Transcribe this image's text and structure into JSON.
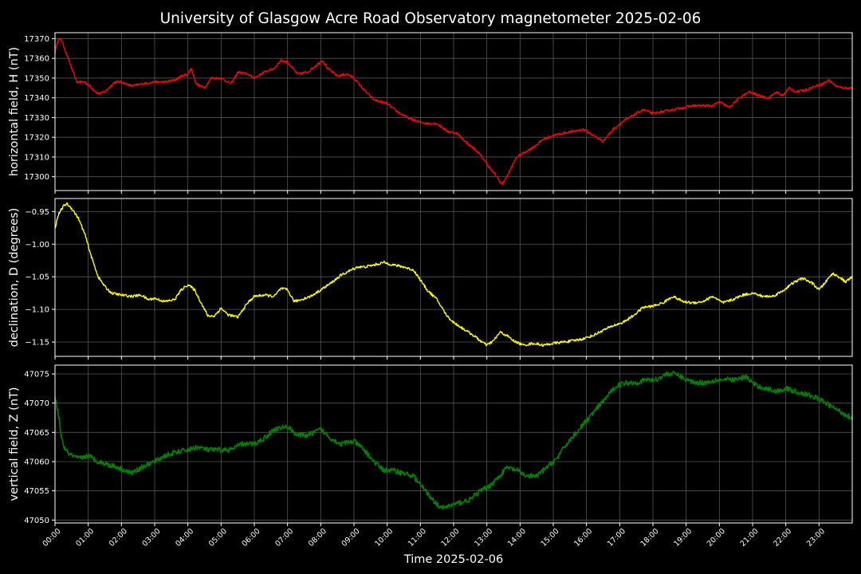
{
  "figure": {
    "title": "University of Glasgow Acre Road Observatory magnetometer 2025-02-06",
    "xlabel": "Time 2025-02-06",
    "x_tick_labels": [
      "00:00",
      "01:00",
      "02:00",
      "03:00",
      "04:00",
      "05:00",
      "06:00",
      "07:00",
      "08:00",
      "09:00",
      "10:00",
      "11:00",
      "12:00",
      "13:00",
      "14:00",
      "15:00",
      "16:00",
      "17:00",
      "18:00",
      "19:00",
      "20:00",
      "21:00",
      "22:00",
      "23:00"
    ]
  },
  "chart_data": [
    {
      "type": "line",
      "ylabel": "horizontal field, H (nT)",
      "color": "#ff0000",
      "ylim": [
        17293,
        17373
      ],
      "yticks": [
        17300,
        17310,
        17320,
        17330,
        17340,
        17350,
        17360,
        17370
      ],
      "xlim": [
        0,
        24
      ],
      "grid": true,
      "x": [
        0.0,
        0.08,
        0.18,
        0.35,
        0.5,
        0.65,
        0.9,
        1.1,
        1.3,
        1.5,
        1.8,
        2.0,
        2.3,
        2.6,
        3.0,
        3.3,
        3.6,
        3.8,
        4.0,
        4.1,
        4.25,
        4.5,
        4.7,
        5.0,
        5.3,
        5.5,
        5.8,
        6.0,
        6.3,
        6.6,
        6.8,
        7.0,
        7.3,
        7.6,
        7.9,
        8.05,
        8.2,
        8.5,
        8.8,
        9.0,
        9.3,
        9.6,
        9.8,
        10.0,
        10.3,
        10.6,
        10.9,
        11.2,
        11.5,
        11.8,
        12.1,
        12.4,
        12.7,
        12.9,
        13.1,
        13.3,
        13.45,
        13.6,
        13.75,
        13.9,
        14.1,
        14.4,
        14.7,
        15.0,
        15.3,
        15.6,
        15.9,
        16.1,
        16.3,
        16.5,
        16.8,
        17.1,
        17.4,
        17.7,
        18.0,
        18.3,
        18.6,
        18.9,
        19.2,
        19.5,
        19.8,
        20.0,
        20.3,
        20.6,
        20.9,
        21.2,
        21.5,
        21.7,
        21.9,
        22.1,
        22.3,
        22.6,
        22.9,
        23.1,
        23.3,
        23.5,
        23.7,
        24.0
      ],
      "y": [
        17363,
        17369,
        17370,
        17362,
        17355,
        17348,
        17348,
        17345,
        17342,
        17343,
        17348,
        17348,
        17346,
        17347,
        17348,
        17348,
        17349,
        17351,
        17352,
        17355,
        17347,
        17345,
        17350,
        17350,
        17347,
        17353,
        17352,
        17350,
        17353,
        17355,
        17359,
        17358,
        17352,
        17353,
        17357,
        17359,
        17355,
        17351,
        17352,
        17350,
        17344,
        17339,
        17338,
        17337,
        17333,
        17330,
        17328,
        17327,
        17327,
        17323,
        17322,
        17317,
        17313,
        17309,
        17304,
        17300,
        17296,
        17300,
        17305,
        17310,
        17312,
        17315,
        17319,
        17321,
        17322,
        17323,
        17324,
        17322,
        17320,
        17318,
        17324,
        17328,
        17331,
        17334,
        17332,
        17333,
        17334,
        17335,
        17336,
        17336,
        17336,
        17338,
        17335,
        17340,
        17343,
        17341,
        17340,
        17343,
        17341,
        17345,
        17343,
        17344,
        17346,
        17347,
        17349,
        17346,
        17345,
        17345
      ],
      "noise": 0.6
    },
    {
      "type": "line",
      "ylabel": "declination, D (degrees)",
      "color": "#ffff00",
      "ylim": [
        -1.172,
        -0.93
      ],
      "yticks": [
        -0.95,
        -1.0,
        -1.05,
        -1.1,
        -1.15
      ],
      "ytick_labels": [
        "−0.95",
        "−1.00",
        "−1.05",
        "−1.10",
        "−1.15"
      ],
      "xlim": [
        0,
        24
      ],
      "grid": true,
      "x": [
        0.0,
        0.1,
        0.25,
        0.35,
        0.5,
        0.7,
        0.9,
        1.1,
        1.3,
        1.5,
        1.7,
        2.0,
        2.3,
        2.6,
        2.8,
        3.0,
        3.3,
        3.6,
        3.8,
        4.0,
        4.2,
        4.4,
        4.6,
        4.8,
        5.0,
        5.2,
        5.5,
        5.8,
        6.0,
        6.3,
        6.6,
        6.8,
        7.0,
        7.2,
        7.4,
        7.7,
        8.0,
        8.3,
        8.6,
        8.9,
        9.1,
        9.3,
        9.6,
        9.9,
        10.2,
        10.5,
        10.8,
        11.0,
        11.2,
        11.5,
        11.8,
        12.0,
        12.3,
        12.6,
        12.8,
        13.0,
        13.2,
        13.4,
        13.6,
        13.8,
        14.1,
        14.4,
        14.7,
        15.0,
        15.3,
        15.6,
        15.9,
        16.2,
        16.5,
        16.8,
        17.1,
        17.4,
        17.7,
        18.0,
        18.3,
        18.6,
        18.9,
        19.2,
        19.5,
        19.8,
        20.1,
        20.4,
        20.7,
        21.0,
        21.3,
        21.6,
        21.9,
        22.2,
        22.5,
        22.8,
        23.0,
        23.2,
        23.4,
        23.6,
        23.8,
        24.0
      ],
      "y": [
        -0.975,
        -0.955,
        -0.942,
        -0.938,
        -0.945,
        -0.96,
        -0.985,
        -1.02,
        -1.05,
        -1.065,
        -1.075,
        -1.078,
        -1.08,
        -1.078,
        -1.085,
        -1.083,
        -1.088,
        -1.085,
        -1.07,
        -1.062,
        -1.07,
        -1.09,
        -1.11,
        -1.11,
        -1.098,
        -1.108,
        -1.112,
        -1.09,
        -1.08,
        -1.078,
        -1.08,
        -1.068,
        -1.07,
        -1.088,
        -1.085,
        -1.08,
        -1.07,
        -1.06,
        -1.048,
        -1.04,
        -1.035,
        -1.035,
        -1.032,
        -1.028,
        -1.032,
        -1.035,
        -1.04,
        -1.055,
        -1.07,
        -1.085,
        -1.11,
        -1.12,
        -1.13,
        -1.14,
        -1.148,
        -1.155,
        -1.148,
        -1.135,
        -1.14,
        -1.148,
        -1.155,
        -1.152,
        -1.155,
        -1.152,
        -1.15,
        -1.148,
        -1.145,
        -1.14,
        -1.132,
        -1.125,
        -1.12,
        -1.11,
        -1.097,
        -1.095,
        -1.09,
        -1.08,
        -1.088,
        -1.09,
        -1.088,
        -1.08,
        -1.09,
        -1.085,
        -1.078,
        -1.075,
        -1.08,
        -1.08,
        -1.072,
        -1.06,
        -1.052,
        -1.06,
        -1.07,
        -1.058,
        -1.045,
        -1.05,
        -1.058,
        -1.05
      ],
      "noise": 0.002
    },
    {
      "type": "line",
      "ylabel": "vertical field, Z (nT)",
      "color": "#008000",
      "ylim": [
        47049.5,
        47076.5
      ],
      "yticks": [
        47050,
        47055,
        47060,
        47065,
        47070,
        47075
      ],
      "xlim": [
        0,
        24
      ],
      "grid": true,
      "x": [
        0.0,
        0.1,
        0.2,
        0.3,
        0.5,
        0.7,
        1.0,
        1.3,
        1.6,
        1.9,
        2.1,
        2.3,
        2.6,
        3.0,
        3.3,
        3.6,
        4.0,
        4.3,
        4.6,
        5.0,
        5.3,
        5.6,
        6.0,
        6.3,
        6.6,
        7.0,
        7.3,
        7.6,
        8.0,
        8.3,
        8.6,
        9.0,
        9.3,
        9.6,
        9.9,
        10.2,
        10.5,
        10.8,
        11.0,
        11.3,
        11.6,
        11.9,
        12.2,
        12.5,
        12.8,
        13.0,
        13.3,
        13.6,
        13.9,
        14.2,
        14.5,
        14.8,
        15.1,
        15.4,
        15.7,
        16.0,
        16.3,
        16.6,
        16.9,
        17.2,
        17.5,
        17.8,
        18.1,
        18.4,
        18.7,
        19.0,
        19.3,
        19.6,
        19.9,
        20.2,
        20.5,
        20.8,
        21.1,
        21.4,
        21.7,
        22.0,
        22.3,
        22.6,
        22.9,
        23.2,
        23.5,
        23.8,
        24.0
      ],
      "y": [
        47071,
        47068,
        47064,
        47062,
        47061,
        47060.5,
        47061,
        47060,
        47059.5,
        47059,
        47058.5,
        47058,
        47059,
        47060,
        47061,
        47061.5,
        47062,
        47062.5,
        47062,
        47062,
        47062,
        47063,
        47063,
        47064,
        47065.5,
        47066,
        47064.5,
        47064.5,
        47065.5,
        47064,
        47063,
        47063.5,
        47062,
        47060,
        47058.5,
        47058.5,
        47058,
        47057.5,
        47056,
        47054,
        47052,
        47052.5,
        47053,
        47053.5,
        47055,
        47055.5,
        47057,
        47059,
        47058.5,
        47057.5,
        47057.5,
        47059,
        47060.5,
        47063,
        47065,
        47067,
        47069,
        47071,
        47073,
        47073.5,
        47073.5,
        47074,
        47074,
        47075,
        47075,
        47074,
        47073.5,
        47073.5,
        47074,
        47074,
        47074,
        47074.5,
        47073,
        47072.5,
        47072,
        47072.5,
        47072,
        47071.5,
        47071,
        47070,
        47069,
        47068,
        47067.5
      ],
      "noise": 0.45
    }
  ]
}
